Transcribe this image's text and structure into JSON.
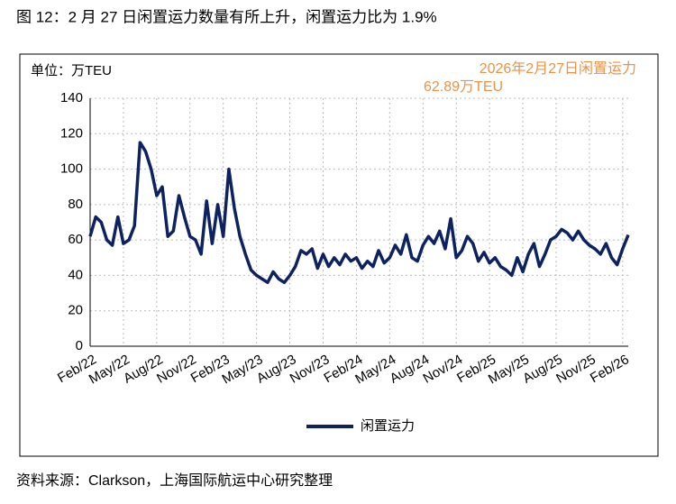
{
  "chart_data": {
    "type": "line",
    "title": "图 12：2 月 27 日闲置运力数量有所上升，闲置运力比为 1.9%",
    "unit_label": "单位：万TEU",
    "annotation": [
      "2026年2月27日闲置运力",
      "62.89万TEU"
    ],
    "source": "资料来源：Clarkson，上海国际航运中心研究整理",
    "categories": [
      "Feb/22",
      null,
      null,
      null,
      null,
      null,
      "May/22",
      null,
      null,
      null,
      null,
      null,
      "Aug/22",
      null,
      null,
      null,
      null,
      null,
      "Nov/22",
      null,
      null,
      null,
      null,
      null,
      "Feb/23",
      null,
      null,
      null,
      null,
      null,
      "May/23",
      null,
      null,
      null,
      null,
      null,
      "Aug/23",
      null,
      null,
      null,
      null,
      null,
      "Nov/23",
      null,
      null,
      null,
      null,
      null,
      "Feb/24",
      null,
      null,
      null,
      null,
      null,
      "May/24",
      null,
      null,
      null,
      null,
      null,
      "Aug/24",
      null,
      null,
      null,
      null,
      null,
      "Nov/24",
      null,
      null,
      null,
      null,
      null,
      "Feb/25",
      null,
      null,
      null,
      null,
      null,
      "May/25",
      null,
      null,
      null,
      null,
      null,
      "Aug/25",
      null,
      null,
      null,
      null,
      null,
      "Nov/25",
      null,
      null,
      null,
      null,
      null,
      "Feb/26",
      null
    ],
    "series": [
      {
        "name": "闲置运力",
        "color": "#0d2260",
        "values": [
          62,
          73,
          70,
          60,
          57,
          73,
          58,
          60,
          68,
          115,
          110,
          100,
          85,
          90,
          62,
          65,
          85,
          73,
          62,
          60,
          52,
          82,
          58,
          80,
          62,
          100,
          78,
          62,
          52,
          43,
          40,
          38,
          36,
          42,
          38,
          36,
          40,
          45,
          54,
          52,
          55,
          44,
          52,
          45,
          50,
          46,
          52,
          48,
          50,
          44,
          48,
          45,
          54,
          47,
          50,
          57,
          52,
          63,
          50,
          48,
          57,
          62,
          58,
          65,
          55,
          72,
          50,
          54,
          62,
          58,
          48,
          53,
          47,
          50,
          45,
          43,
          40,
          50,
          42,
          52,
          58,
          45,
          52,
          60,
          62,
          66,
          64,
          60,
          65,
          60,
          57,
          55,
          52,
          58,
          50,
          46,
          55,
          62.89
        ]
      }
    ],
    "ylim": [
      0,
      140
    ],
    "yticks": [
      0,
      20,
      40,
      60,
      80,
      100,
      120,
      140
    ],
    "grid": true,
    "legend": "bottom"
  }
}
